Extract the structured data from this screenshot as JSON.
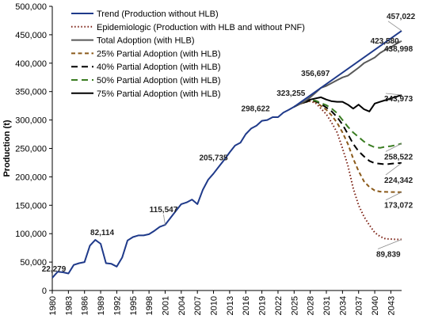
{
  "chart_data": {
    "type": "line",
    "title": "",
    "xlabel": "",
    "ylabel": "Production (t)",
    "xlim": [
      1980,
      2045
    ],
    "ylim": [
      0,
      500000
    ],
    "x_ticks": [
      1980,
      1983,
      1986,
      1989,
      1992,
      1995,
      1998,
      2001,
      2004,
      2007,
      2010,
      2013,
      2016,
      2019,
      2022,
      2025,
      2028,
      2031,
      2034,
      2037,
      2040,
      2043
    ],
    "y_ticks": [
      0,
      50000,
      100000,
      150000,
      200000,
      250000,
      300000,
      350000,
      400000,
      450000,
      500000
    ],
    "x_tick_labels": [
      "1980",
      "1983",
      "1986",
      "1989",
      "1992",
      "1995",
      "1998",
      "2001",
      "2004",
      "2007",
      "2010",
      "2013",
      "2016",
      "2019",
      "2022",
      "2025",
      "2028",
      "2031",
      "2034",
      "2037",
      "2040",
      "2043"
    ],
    "y_tick_labels": [
      "0",
      "50,000",
      "100,000",
      "150,000",
      "200,000",
      "250,000",
      "300,000",
      "350,000",
      "400,000",
      "450,000",
      "500,000"
    ],
    "grid": false,
    "legend_position": "top-left",
    "historical": {
      "x": [
        1980,
        1981,
        1982,
        1983,
        1984,
        1985,
        1986,
        1987,
        1988,
        1989,
        1990,
        1991,
        1992,
        1993,
        1994,
        1995,
        1996,
        1997,
        1998,
        1999,
        2000,
        2001,
        2002,
        2003,
        2004,
        2005,
        2006,
        2007,
        2008,
        2009,
        2010,
        2011,
        2012,
        2013,
        2014,
        2015,
        2016,
        2017,
        2018,
        2019,
        2020,
        2021,
        2022,
        2023,
        2024,
        2025
      ],
      "values": [
        22279,
        33000,
        32000,
        30000,
        45000,
        48000,
        50000,
        79000,
        89000,
        82114,
        48000,
        47000,
        42000,
        58000,
        88000,
        94000,
        97000,
        97000,
        99000,
        105000,
        112000,
        115547,
        128000,
        140000,
        152000,
        155000,
        160000,
        152000,
        177000,
        195000,
        205735,
        218000,
        230000,
        243000,
        255000,
        260000,
        275000,
        285000,
        290000,
        298622,
        300000,
        305000,
        305000,
        313000,
        318000,
        323255
      ]
    },
    "series": [
      {
        "name": "Trend (Production without HLB)",
        "color": "#1f3a8a",
        "dash": "solid",
        "x": [
          2025,
          2045
        ],
        "values": [
          323255,
          457022
        ]
      },
      {
        "name": "Epidemiologic (Production with HLB and without PNF)",
        "color": "#7b1f12",
        "dash": "dot",
        "x": [
          2025,
          2026,
          2027,
          2028,
          2029,
          2030,
          2031,
          2032,
          2033,
          2034,
          2035,
          2036,
          2037,
          2038,
          2039,
          2040,
          2041,
          2042,
          2043,
          2044,
          2045
        ],
        "values": [
          323255,
          328000,
          331000,
          333000,
          330000,
          320000,
          310000,
          295000,
          278000,
          250000,
          220000,
          180000,
          150000,
          130000,
          115000,
          102000,
          95000,
          91000,
          90500,
          90000,
          89839
        ]
      },
      {
        "name": "Total Adoption (with HLB)",
        "color": "#595959",
        "dash": "solid",
        "x": [
          2025,
          2026,
          2027,
          2028,
          2029,
          2030,
          2031,
          2032,
          2033,
          2034,
          2035,
          2036,
          2037,
          2038,
          2039,
          2040,
          2041,
          2042,
          2043,
          2044,
          2045
        ],
        "values": [
          323255,
          328000,
          333000,
          340000,
          348000,
          356697,
          360000,
          365000,
          370000,
          375000,
          378000,
          385000,
          392000,
          400000,
          405000,
          410000,
          418000,
          423580,
          428000,
          434000,
          438998
        ]
      },
      {
        "name": "25% Partial Adoption (with HLB)",
        "color": "#8b5a1a",
        "dash": "dash",
        "x": [
          2025,
          2026,
          2027,
          2028,
          2029,
          2030,
          2031,
          2032,
          2033,
          2034,
          2035,
          2036,
          2037,
          2038,
          2039,
          2040,
          2041,
          2042,
          2043,
          2044,
          2045
        ],
        "values": [
          323255,
          328000,
          331000,
          334000,
          332000,
          325000,
          318000,
          308000,
          295000,
          278000,
          258000,
          232000,
          210000,
          192000,
          182000,
          176000,
          174000,
          173500,
          173200,
          173100,
          173072
        ]
      },
      {
        "name": "40% Partial Adoption (with HLB)",
        "color": "#000000",
        "dash": "longdash",
        "x": [
          2025,
          2026,
          2027,
          2028,
          2029,
          2030,
          2031,
          2032,
          2033,
          2034,
          2035,
          2036,
          2037,
          2038,
          2039,
          2040,
          2041,
          2042,
          2043,
          2044,
          2045
        ],
        "values": [
          323255,
          328000,
          331000,
          335000,
          333000,
          328000,
          322000,
          315000,
          305000,
          292000,
          275000,
          258000,
          245000,
          236000,
          228000,
          224000,
          223000,
          222000,
          223000,
          224000,
          224342
        ]
      },
      {
        "name": "50% Partial Adoption (with HLB)",
        "color": "#3a7d22",
        "dash": "longdash",
        "x": [
          2025,
          2026,
          2027,
          2028,
          2029,
          2030,
          2031,
          2032,
          2033,
          2034,
          2035,
          2036,
          2037,
          2038,
          2039,
          2040,
          2041,
          2042,
          2043,
          2044,
          2045
        ],
        "values": [
          323255,
          328000,
          332000,
          336000,
          334000,
          330000,
          326000,
          320000,
          312000,
          300000,
          288000,
          278000,
          270000,
          262000,
          256000,
          252000,
          251000,
          253000,
          254000,
          256000,
          258522
        ]
      },
      {
        "name": "75% Partial Adoption (with HLB)",
        "color": "#000000",
        "dash": "solid",
        "x": [
          2025,
          2026,
          2027,
          2028,
          2029,
          2030,
          2031,
          2032,
          2033,
          2034,
          2035,
          2036,
          2037,
          2038,
          2039,
          2040,
          2041,
          2042,
          2043,
          2044,
          2045
        ],
        "values": [
          323255,
          328000,
          332000,
          336000,
          338000,
          340000,
          336000,
          333000,
          332000,
          332000,
          327000,
          320000,
          327000,
          319000,
          315000,
          329000,
          332000,
          335000,
          338000,
          341000,
          343973
        ]
      }
    ],
    "annotations": [
      {
        "text": "22,279",
        "x": 1980,
        "y": 22279
      },
      {
        "text": "82,114",
        "x": 1989,
        "y": 82114
      },
      {
        "text": "115,547",
        "x": 2001,
        "y": 115547
      },
      {
        "text": "205,735",
        "x": 2010,
        "y": 205735
      },
      {
        "text": "298,622",
        "x": 2019,
        "y": 298622
      },
      {
        "text": "323,255",
        "x": 2025,
        "y": 323255
      },
      {
        "text": "356,697",
        "x": 2030,
        "y": 356697
      },
      {
        "text": "423,580",
        "x": 2042,
        "y": 423580
      },
      {
        "text": "457,022",
        "x": 2045,
        "y": 457022
      },
      {
        "text": "438,998",
        "x": 2045,
        "y": 438998
      },
      {
        "text": "343,973",
        "x": 2045,
        "y": 343973
      },
      {
        "text": "258,522",
        "x": 2045,
        "y": 258522
      },
      {
        "text": "224,342",
        "x": 2045,
        "y": 224342
      },
      {
        "text": "173,072",
        "x": 2045,
        "y": 173072
      },
      {
        "text": "89,839",
        "x": 2045,
        "y": 89839
      }
    ]
  }
}
